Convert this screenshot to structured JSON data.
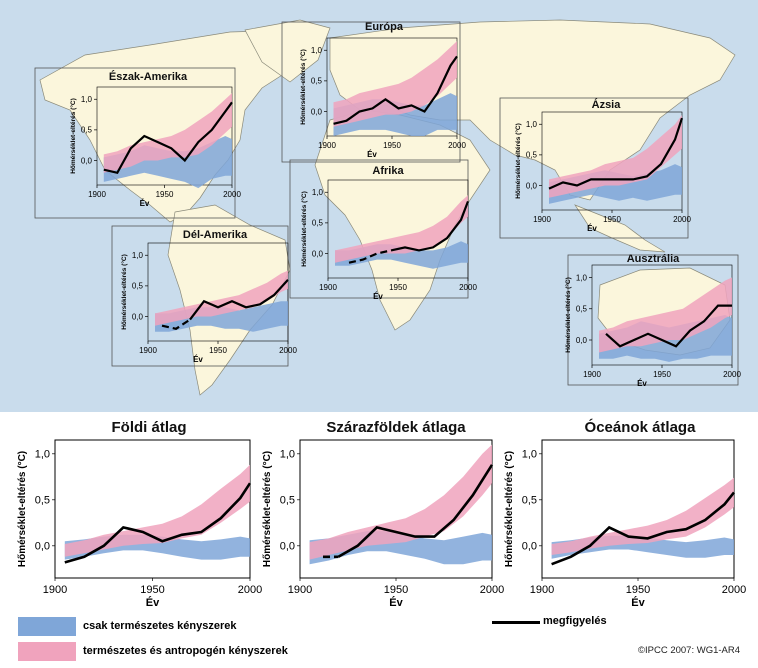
{
  "colors": {
    "ocean": "#c9dcec",
    "land": "#fbf6dc",
    "natural": "#7fa6d8",
    "anthro": "#f0a3bd",
    "observed": "#000000"
  },
  "legend": {
    "natural_label": "csak természetes kényszerek",
    "anthro_label": "természetes és antropogén kényszerek",
    "observed_label": "megfigyelés"
  },
  "credit": "©IPCC 2007: WG1-AR4",
  "chart_data": [
    {
      "type": "area",
      "title": "Észak-Amerika",
      "ylabel": "Hőmérséklet-eltérés (°C)",
      "xlabel": "Év",
      "xlim": [
        1900,
        2000
      ],
      "ylim": [
        -0.4,
        1.2
      ],
      "yticks": [
        "0,0",
        "0,5",
        "1,0"
      ],
      "ytick_values": [
        0,
        0.5,
        1.0
      ],
      "xticks": [
        "1900",
        "1950",
        "2000"
      ],
      "xtick_values": [
        1900,
        1950,
        2000
      ],
      "x": [
        1905,
        1915,
        1925,
        1935,
        1945,
        1955,
        1965,
        1975,
        1985,
        1995,
        2000
      ],
      "natural": {
        "low": [
          -0.35,
          -0.3,
          -0.25,
          -0.2,
          -0.25,
          -0.3,
          -0.35,
          -0.45,
          -0.3,
          -0.25,
          -0.25
        ],
        "high": [
          0.05,
          0.1,
          0.15,
          0.25,
          0.2,
          0.15,
          0.15,
          0.2,
          0.3,
          0.4,
          0.35
        ]
      },
      "anthro": {
        "low": [
          -0.2,
          -0.15,
          -0.1,
          0.0,
          0.0,
          0.05,
          0.05,
          0.1,
          0.25,
          0.45,
          0.55
        ],
        "high": [
          0.1,
          0.15,
          0.25,
          0.3,
          0.35,
          0.4,
          0.5,
          0.65,
          0.8,
          1.0,
          1.1
        ]
      },
      "observed": {
        "x": [
          1905,
          1915,
          1925,
          1935,
          1945,
          1955,
          1965,
          1975,
          1985,
          1995,
          2000
        ],
        "y": [
          -0.15,
          -0.2,
          0.2,
          0.4,
          0.3,
          0.2,
          0.0,
          0.3,
          0.5,
          0.8,
          0.95
        ],
        "dashed_until": null
      }
    },
    {
      "type": "area",
      "title": "Európa",
      "ylabel": "Hőmérséklet-eltérés (°C)",
      "xlabel": "Év",
      "xlim": [
        1900,
        2000
      ],
      "ylim": [
        -0.4,
        1.2
      ],
      "yticks": [
        "0,0",
        "0,5",
        "1,0"
      ],
      "ytick_values": [
        0,
        0.5,
        1.0
      ],
      "xticks": [
        "1900",
        "1950",
        "2000"
      ],
      "xtick_values": [
        1900,
        1950,
        2000
      ],
      "x": [
        1905,
        1915,
        1925,
        1935,
        1945,
        1955,
        1965,
        1975,
        1985,
        1995,
        2000
      ],
      "natural": {
        "low": [
          -0.4,
          -0.35,
          -0.3,
          -0.3,
          -0.3,
          -0.35,
          -0.4,
          -0.4,
          -0.3,
          -0.3,
          -0.3
        ],
        "high": [
          0.05,
          0.1,
          0.15,
          0.2,
          0.2,
          0.15,
          0.1,
          0.1,
          0.2,
          0.3,
          0.25
        ]
      },
      "anthro": {
        "low": [
          -0.25,
          -0.2,
          -0.15,
          -0.1,
          -0.05,
          -0.05,
          0.0,
          0.1,
          0.25,
          0.45,
          0.55
        ],
        "high": [
          0.15,
          0.2,
          0.3,
          0.35,
          0.4,
          0.45,
          0.55,
          0.7,
          0.85,
          1.05,
          1.15
        ]
      },
      "observed": {
        "x": [
          1905,
          1915,
          1925,
          1935,
          1945,
          1955,
          1965,
          1975,
          1985,
          1995,
          2000
        ],
        "y": [
          -0.2,
          -0.15,
          0.0,
          0.05,
          0.2,
          0.05,
          0.1,
          0.0,
          0.3,
          0.75,
          0.9
        ],
        "dashed_until": null
      }
    },
    {
      "type": "area",
      "title": "Ázsia",
      "ylabel": "Hőmérséklet-eltérés (°C)",
      "xlabel": "Év",
      "xlim": [
        1900,
        2000
      ],
      "ylim": [
        -0.4,
        1.2
      ],
      "yticks": [
        "0,0",
        "0,5",
        "1,0"
      ],
      "ytick_values": [
        0,
        0.5,
        1.0
      ],
      "xticks": [
        "1900",
        "1950",
        "2000"
      ],
      "xtick_values": [
        1900,
        1950,
        2000
      ],
      "x": [
        1905,
        1915,
        1925,
        1935,
        1945,
        1955,
        1965,
        1975,
        1985,
        1995,
        2000
      ],
      "natural": {
        "low": [
          -0.3,
          -0.25,
          -0.2,
          -0.15,
          -0.2,
          -0.25,
          -0.2,
          -0.25,
          -0.2,
          -0.15,
          -0.15
        ],
        "high": [
          0.05,
          0.1,
          0.15,
          0.2,
          0.25,
          0.2,
          0.15,
          0.2,
          0.25,
          0.35,
          0.3
        ]
      },
      "anthro": {
        "low": [
          -0.2,
          -0.15,
          -0.1,
          -0.05,
          0.0,
          0.0,
          0.05,
          0.1,
          0.3,
          0.5,
          0.6
        ],
        "high": [
          0.1,
          0.15,
          0.2,
          0.25,
          0.35,
          0.4,
          0.45,
          0.6,
          0.8,
          1.0,
          1.15
        ]
      },
      "observed": {
        "x": [
          1905,
          1915,
          1925,
          1935,
          1945,
          1955,
          1965,
          1975,
          1985,
          1995,
          2000
        ],
        "y": [
          -0.05,
          0.05,
          0.0,
          0.1,
          0.1,
          0.1,
          0.1,
          0.15,
          0.35,
          0.75,
          1.1
        ],
        "dashed_until": null
      }
    },
    {
      "type": "area",
      "title": "Afrika",
      "ylabel": "Hőmérséklet-eltérés (°C)",
      "xlabel": "Év",
      "xlim": [
        1900,
        2000
      ],
      "ylim": [
        -0.4,
        1.2
      ],
      "yticks": [
        "0,0",
        "0,5",
        "1,0"
      ],
      "ytick_values": [
        0,
        0.5,
        1.0
      ],
      "xticks": [
        "1900",
        "1950",
        "2000"
      ],
      "xtick_values": [
        1900,
        1950,
        2000
      ],
      "x": [
        1905,
        1915,
        1925,
        1935,
        1945,
        1955,
        1965,
        1975,
        1985,
        1995,
        2000
      ],
      "natural": {
        "low": [
          -0.2,
          -0.2,
          -0.15,
          -0.1,
          -0.1,
          -0.15,
          -0.2,
          -0.25,
          -0.2,
          -0.15,
          -0.15
        ],
        "high": [
          0.05,
          0.05,
          0.1,
          0.15,
          0.15,
          0.1,
          0.05,
          0.05,
          0.1,
          0.2,
          0.15
        ]
      },
      "anthro": {
        "low": [
          -0.15,
          -0.1,
          -0.05,
          0.0,
          0.0,
          0.0,
          0.05,
          0.1,
          0.25,
          0.5,
          0.6
        ],
        "high": [
          0.05,
          0.1,
          0.15,
          0.2,
          0.25,
          0.3,
          0.35,
          0.45,
          0.6,
          0.85,
          0.95
        ]
      },
      "observed": {
        "x": [
          1915,
          1925,
          1935,
          1945,
          1955,
          1965,
          1975,
          1985,
          1995,
          2000
        ],
        "y": [
          -0.15,
          -0.1,
          0.0,
          0.05,
          0.1,
          0.05,
          0.1,
          0.25,
          0.55,
          0.85
        ],
        "dashed_until": 1945
      }
    },
    {
      "type": "area",
      "title": "Dél-Amerika",
      "ylabel": "Hőmérséklet-eltérés (°C)",
      "xlabel": "Év",
      "xlim": [
        1900,
        2000
      ],
      "ylim": [
        -0.4,
        1.2
      ],
      "yticks": [
        "0,0",
        "0,5",
        "1,0"
      ],
      "ytick_values": [
        0,
        0.5,
        1.0
      ],
      "xticks": [
        "1900",
        "1950",
        "2000"
      ],
      "xtick_values": [
        1900,
        1950,
        2000
      ],
      "x": [
        1905,
        1915,
        1925,
        1935,
        1945,
        1955,
        1965,
        1975,
        1985,
        1995,
        2000
      ],
      "natural": {
        "low": [
          -0.25,
          -0.25,
          -0.2,
          -0.15,
          -0.15,
          -0.2,
          -0.2,
          -0.25,
          -0.2,
          -0.15,
          -0.15
        ],
        "high": [
          0.05,
          0.05,
          0.1,
          0.15,
          0.15,
          0.15,
          0.1,
          0.15,
          0.2,
          0.25,
          0.25
        ]
      },
      "anthro": {
        "low": [
          -0.15,
          -0.1,
          -0.05,
          0.0,
          0.0,
          0.05,
          0.1,
          0.15,
          0.25,
          0.4,
          0.45
        ],
        "high": [
          0.05,
          0.1,
          0.15,
          0.2,
          0.25,
          0.3,
          0.35,
          0.45,
          0.55,
          0.7,
          0.75
        ]
      },
      "observed": {
        "x": [
          1910,
          1920,
          1930,
          1940,
          1950,
          1960,
          1970,
          1980,
          1990,
          2000
        ],
        "y": [
          -0.15,
          -0.2,
          -0.05,
          0.25,
          0.15,
          0.25,
          0.15,
          0.2,
          0.35,
          0.6
        ],
        "dashed_until": 1930
      }
    },
    {
      "type": "area",
      "title": "Ausztrália",
      "ylabel": "Hőmérséklet-eltérés (°C)",
      "xlabel": "Év",
      "xlim": [
        1900,
        2000
      ],
      "ylim": [
        -0.4,
        1.2
      ],
      "yticks": [
        "0,0",
        "0,5",
        "1,0"
      ],
      "ytick_values": [
        0,
        0.5,
        1.0
      ],
      "xticks": [
        "1900",
        "1950",
        "2000"
      ],
      "xtick_values": [
        1900,
        1950,
        2000
      ],
      "x": [
        1905,
        1915,
        1925,
        1935,
        1945,
        1955,
        1965,
        1975,
        1985,
        1995,
        2000
      ],
      "natural": {
        "low": [
          -0.3,
          -0.3,
          -0.25,
          -0.3,
          -0.3,
          -0.35,
          -0.3,
          -0.3,
          -0.25,
          -0.25,
          -0.25
        ],
        "high": [
          0.1,
          0.15,
          0.2,
          0.3,
          0.25,
          0.2,
          0.25,
          0.3,
          0.35,
          0.4,
          0.35
        ]
      },
      "anthro": {
        "low": [
          -0.2,
          -0.15,
          -0.1,
          -0.1,
          -0.05,
          0.0,
          0.0,
          0.1,
          0.2,
          0.35,
          0.4
        ],
        "high": [
          0.15,
          0.2,
          0.3,
          0.35,
          0.4,
          0.45,
          0.5,
          0.65,
          0.8,
          0.95,
          1.0
        ]
      },
      "observed": {
        "x": [
          1910,
          1920,
          1930,
          1940,
          1950,
          1960,
          1970,
          1980,
          1990,
          2000
        ],
        "y": [
          0.1,
          -0.1,
          0.0,
          0.1,
          0.0,
          -0.1,
          0.15,
          0.3,
          0.55,
          0.55
        ],
        "dashed_until": null
      }
    },
    {
      "type": "area",
      "title": "Földi átlag",
      "ylabel": "Hőmérséklet-eltérés (°C)",
      "xlabel": "Év",
      "xlim": [
        1900,
        2000
      ],
      "ylim": [
        -0.35,
        1.15
      ],
      "yticks": [
        "0,0",
        "0,5",
        "1,0"
      ],
      "ytick_values": [
        0,
        0.5,
        1.0
      ],
      "xticks": [
        "1900",
        "1950",
        "2000"
      ],
      "xtick_values": [
        1900,
        1950,
        2000
      ],
      "x": [
        1905,
        1915,
        1925,
        1935,
        1945,
        1955,
        1965,
        1975,
        1985,
        1995,
        2000
      ],
      "natural": {
        "low": [
          -0.15,
          -0.12,
          -0.08,
          -0.05,
          -0.05,
          -0.08,
          -0.12,
          -0.15,
          -0.15,
          -0.12,
          -0.12
        ],
        "high": [
          0.05,
          0.07,
          0.1,
          0.12,
          0.12,
          0.1,
          0.07,
          0.05,
          0.07,
          0.1,
          0.08
        ]
      },
      "anthro": {
        "low": [
          -0.12,
          -0.08,
          -0.04,
          0.0,
          0.02,
          0.03,
          0.08,
          0.12,
          0.25,
          0.4,
          0.48
        ],
        "high": [
          0.02,
          0.06,
          0.12,
          0.16,
          0.2,
          0.24,
          0.32,
          0.45,
          0.62,
          0.78,
          0.88
        ]
      },
      "observed": {
        "x": [
          1905,
          1915,
          1925,
          1935,
          1945,
          1955,
          1965,
          1975,
          1985,
          1995,
          2000
        ],
        "y": [
          -0.18,
          -0.12,
          0.0,
          0.2,
          0.15,
          0.05,
          0.12,
          0.15,
          0.3,
          0.52,
          0.68
        ],
        "dashed_until": null
      }
    },
    {
      "type": "area",
      "title": "Szárazföldek átlaga",
      "ylabel": "Hőmérséklet-eltérés (°C)",
      "xlabel": "Év",
      "xlim": [
        1900,
        2000
      ],
      "ylim": [
        -0.35,
        1.15
      ],
      "yticks": [
        "0,0",
        "0,5",
        "1,0"
      ],
      "ytick_values": [
        0,
        0.5,
        1.0
      ],
      "xticks": [
        "1900",
        "1950",
        "2000"
      ],
      "xtick_values": [
        1900,
        1950,
        2000
      ],
      "x": [
        1905,
        1915,
        1925,
        1935,
        1945,
        1955,
        1965,
        1975,
        1985,
        1995,
        2000
      ],
      "natural": {
        "low": [
          -0.2,
          -0.16,
          -0.1,
          -0.06,
          -0.06,
          -0.1,
          -0.14,
          -0.2,
          -0.2,
          -0.16,
          -0.16
        ],
        "high": [
          0.06,
          0.08,
          0.12,
          0.16,
          0.16,
          0.12,
          0.08,
          0.06,
          0.1,
          0.14,
          0.12
        ]
      },
      "anthro": {
        "low": [
          -0.15,
          -0.1,
          -0.05,
          0.0,
          0.02,
          0.04,
          0.1,
          0.16,
          0.32,
          0.55,
          0.68
        ],
        "high": [
          0.04,
          0.08,
          0.15,
          0.2,
          0.25,
          0.3,
          0.4,
          0.55,
          0.75,
          1.0,
          1.1
        ]
      },
      "observed": {
        "x": [
          1912,
          1920,
          1930,
          1940,
          1950,
          1960,
          1970,
          1980,
          1990,
          2000
        ],
        "y": [
          -0.12,
          -0.12,
          0.0,
          0.2,
          0.15,
          0.1,
          0.1,
          0.28,
          0.55,
          0.88
        ],
        "dashed_until": 1925
      }
    },
    {
      "type": "area",
      "title": "Óceánok átlaga",
      "ylabel": "Hőmérséklet-eltérés (°C)",
      "xlabel": "Év",
      "xlim": [
        1900,
        2000
      ],
      "ylim": [
        -0.35,
        1.15
      ],
      "yticks": [
        "0,0",
        "0,5",
        "1,0"
      ],
      "ytick_values": [
        0,
        0.5,
        1.0
      ],
      "xticks": [
        "1900",
        "1950",
        "2000"
      ],
      "xtick_values": [
        1900,
        1950,
        2000
      ],
      "x": [
        1905,
        1915,
        1925,
        1935,
        1945,
        1955,
        1965,
        1975,
        1985,
        1995,
        2000
      ],
      "natural": {
        "low": [
          -0.14,
          -0.1,
          -0.07,
          -0.04,
          -0.04,
          -0.07,
          -0.1,
          -0.13,
          -0.13,
          -0.1,
          -0.1
        ],
        "high": [
          0.04,
          0.06,
          0.09,
          0.11,
          0.11,
          0.09,
          0.06,
          0.04,
          0.06,
          0.09,
          0.07
        ]
      },
      "anthro": {
        "low": [
          -0.1,
          -0.07,
          -0.03,
          0.0,
          0.02,
          0.03,
          0.07,
          0.1,
          0.2,
          0.34,
          0.42
        ],
        "high": [
          0.02,
          0.05,
          0.1,
          0.14,
          0.18,
          0.22,
          0.28,
          0.38,
          0.52,
          0.66,
          0.74
        ]
      },
      "observed": {
        "x": [
          1905,
          1915,
          1925,
          1935,
          1945,
          1955,
          1965,
          1975,
          1985,
          1995,
          2000
        ],
        "y": [
          -0.2,
          -0.12,
          0.0,
          0.2,
          0.1,
          0.08,
          0.15,
          0.18,
          0.28,
          0.45,
          0.58
        ],
        "dashed_until": null
      }
    }
  ]
}
